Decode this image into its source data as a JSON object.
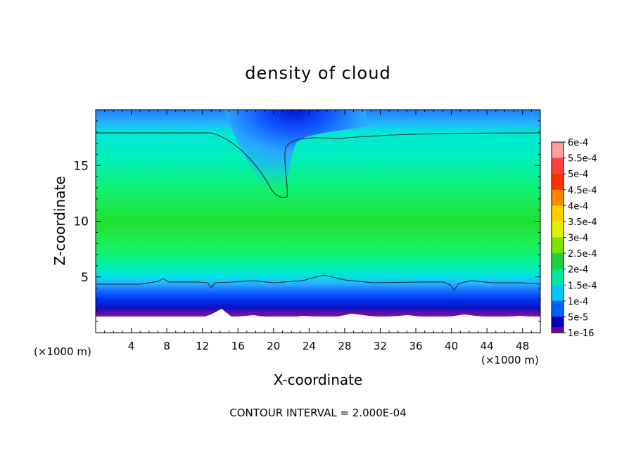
{
  "chart_data": {
    "type": "heatmap",
    "title": "density of cloud",
    "xlabel": "X-coordinate",
    "ylabel": "Z-coordinate",
    "x_unit_left": "(×1000 m)",
    "x_unit_right": "(×1000 m)",
    "xlim": [
      0,
      50
    ],
    "ylim": [
      0,
      20
    ],
    "x_ticks": [
      "4",
      "8",
      "12",
      "16",
      "20",
      "24",
      "28",
      "32",
      "36",
      "40",
      "44",
      "48"
    ],
    "y_ticks": [
      "5",
      "10",
      "15"
    ],
    "colorbar": {
      "labels": [
        "6e-4",
        "5.5e-4",
        "5e-4",
        "4.5e-4",
        "4e-4",
        "3.5e-4",
        "3e-4",
        "2.5e-4",
        "2e-4",
        "1.5e-4",
        "1e-4",
        "5e-5",
        "1e-16"
      ],
      "colors": [
        "#ffa0a0",
        "#ff4040",
        "#ff3000",
        "#ff8800",
        "#ffd000",
        "#e0f000",
        "#80e000",
        "#20d040",
        "#00e8a0",
        "#00c8ff",
        "#0060ff",
        "#0000c0",
        "#7000a0"
      ]
    },
    "contour_interval_text": "CONTOUR INTERVAL = 2.000E-04"
  }
}
